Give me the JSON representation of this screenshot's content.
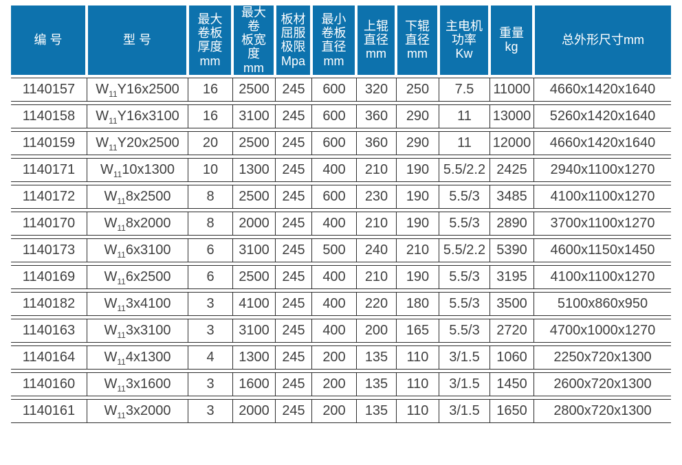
{
  "colors": {
    "header_bg": "#0d72ad",
    "header_text": "#ffffff",
    "body_text": "#3f3f3f",
    "border": "#2c2c2c",
    "page_bg": "#ffffff"
  },
  "table": {
    "columns": [
      {
        "key": "serial",
        "label": "编 号"
      },
      {
        "key": "model",
        "label": "型 号"
      },
      {
        "key": "max_plate_thickness",
        "label": "最大\n卷板\n厚度\nmm"
      },
      {
        "key": "max_plate_width",
        "label": "最大\n卷\n板宽\n度\nmm"
      },
      {
        "key": "yield_limit",
        "label": "板材\n屈服\n极限\nMpa"
      },
      {
        "key": "min_roll_diameter",
        "label": "最小\n卷板\n直径\nmm"
      },
      {
        "key": "upper_roller_diameter",
        "label": "上辊\n直径\nmm"
      },
      {
        "key": "lower_roller_diameter",
        "label": "下辊\n直径\nmm"
      },
      {
        "key": "main_motor_power",
        "label": "主电机\n功率\nKw"
      },
      {
        "key": "weight",
        "label": "重量\nkg"
      },
      {
        "key": "overall_dimensions",
        "label": "总外形尺寸mm"
      }
    ],
    "rows": [
      {
        "id": "1140157",
        "model": {
          "base": "W",
          "sub": "11",
          "rest": "Y16x2500"
        },
        "values": [
          "16",
          "2500",
          "245",
          "600",
          "320",
          "250",
          "7.5",
          "11000",
          "4660x1420x1640"
        ]
      },
      {
        "id": "1140158",
        "model": {
          "base": "W",
          "sub": "11",
          "rest": "Y16x3100"
        },
        "values": [
          "16",
          "3100",
          "245",
          "600",
          "360",
          "290",
          "11",
          "13000",
          "5260x1420x1640"
        ]
      },
      {
        "id": "1140159",
        "model": {
          "base": "W",
          "sub": "11",
          "rest": "Y20x2500"
        },
        "values": [
          "20",
          "2500",
          "245",
          "600",
          "360",
          "290",
          "11",
          "12000",
          "4660x1420x1640"
        ]
      },
      {
        "id": "1140171",
        "model": {
          "base": "W",
          "sub": "11",
          "rest": "10x1300"
        },
        "values": [
          "10",
          "1300",
          "245",
          "400",
          "210",
          "190",
          "5.5/2.2",
          "2425",
          "2940x1100x1270"
        ]
      },
      {
        "id": "1140172",
        "model": {
          "base": "W",
          "sub": "11",
          "rest": "8x2500"
        },
        "values": [
          "8",
          "2500",
          "245",
          "600",
          "230",
          "190",
          "5.5/3",
          "3485",
          "4100x1100x1270"
        ]
      },
      {
        "id": "1140170",
        "model": {
          "base": "W",
          "sub": "11",
          "rest": "8x2000"
        },
        "values": [
          "8",
          "2000",
          "245",
          "400",
          "210",
          "190",
          "5.5/3",
          "2890",
          "3700x1100x1270"
        ]
      },
      {
        "id": "1140173",
        "model": {
          "base": "W",
          "sub": "11",
          "rest": "6x3100"
        },
        "values": [
          "6",
          "3100",
          "245",
          "500",
          "240",
          "210",
          "5.5/2.2",
          "5390",
          "4600x1150x1450"
        ]
      },
      {
        "id": "1140169",
        "model": {
          "base": "W",
          "sub": "11",
          "rest": "6x2500"
        },
        "values": [
          "6",
          "2500",
          "245",
          "400",
          "210",
          "190",
          "5.5/3",
          "3195",
          "4100x1100x1270"
        ]
      },
      {
        "id": "1140182",
        "model": {
          "base": "W",
          "sub": "11",
          "rest": "3x4100"
        },
        "values": [
          "3",
          "4100",
          "245",
          "400",
          "220",
          "180",
          "5.5/3",
          "3500",
          "5100x860x950"
        ]
      },
      {
        "id": "1140163",
        "model": {
          "base": "W",
          "sub": "11",
          "rest": "3x3100"
        },
        "values": [
          "3",
          "3100",
          "245",
          "400",
          "200",
          "165",
          "5.5/3",
          "2720",
          "4700x1000x1270"
        ]
      },
      {
        "id": "1140164",
        "model": {
          "base": "W",
          "sub": "11",
          "rest": "4x1300"
        },
        "values": [
          "4",
          "1300",
          "245",
          "200",
          "135",
          "110",
          "3/1.5",
          "1060",
          "2250x720x1300"
        ]
      },
      {
        "id": "1140160",
        "model": {
          "base": "W",
          "sub": "11",
          "rest": "3x1600"
        },
        "values": [
          "3",
          "1600",
          "245",
          "200",
          "135",
          "110",
          "3/1.5",
          "1450",
          "2600x720x1300"
        ]
      },
      {
        "id": "1140161",
        "model": {
          "base": "W",
          "sub": "11",
          "rest": "3x2000"
        },
        "values": [
          "3",
          "2000",
          "245",
          "200",
          "135",
          "110",
          "3/1.5",
          "1650",
          "2800x720x1300"
        ]
      }
    ]
  }
}
